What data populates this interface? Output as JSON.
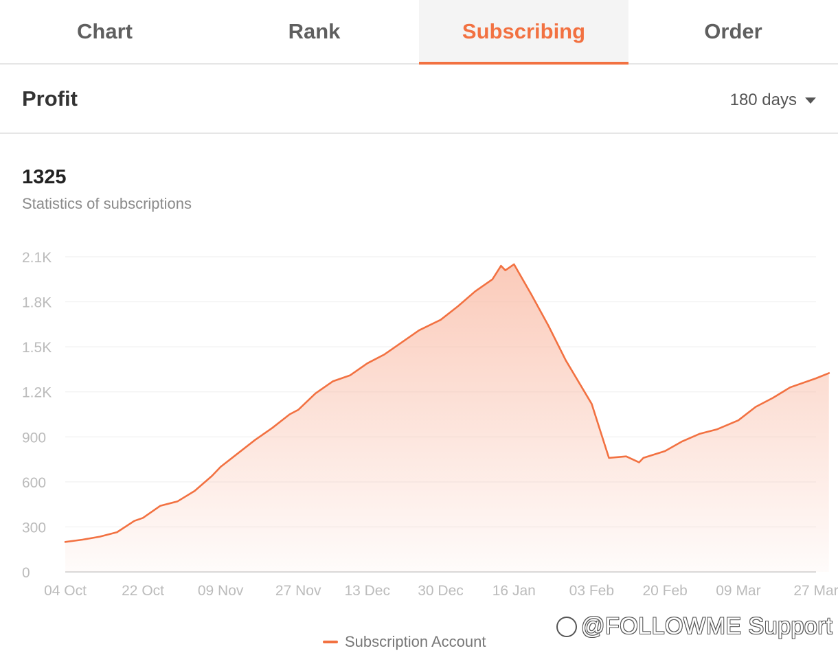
{
  "tabs": [
    {
      "label": "Chart",
      "active": false
    },
    {
      "label": "Rank",
      "active": false
    },
    {
      "label": "Subscribing",
      "active": true
    },
    {
      "label": "Order",
      "active": false
    }
  ],
  "header": {
    "title": "Profit",
    "range_label": "180 days"
  },
  "stats": {
    "value": "1325",
    "label": "Statistics of subscriptions"
  },
  "colors": {
    "accent": "#f27141",
    "area_top": "#f9b9a3",
    "grid": "#eeeeee",
    "tick": "#bbbbbb"
  },
  "watermark": "@FOLLOWME Support",
  "chart_data": {
    "type": "area",
    "title": "",
    "xlabel": "",
    "ylabel": "",
    "y_ticks": [
      0,
      300,
      600,
      900,
      1200,
      1500,
      1800,
      2100
    ],
    "y_tick_labels": [
      "0",
      "300",
      "600",
      "900",
      "1.2K",
      "1.5K",
      "1.8K",
      "2.1K"
    ],
    "ylim": [
      0,
      2100
    ],
    "x_tick_labels": [
      "04 Oct",
      "22 Oct",
      "09 Nov",
      "27 Nov",
      "13 Dec",
      "30 Dec",
      "16 Jan",
      "03 Feb",
      "20 Feb",
      "09 Mar",
      "27 Mar"
    ],
    "grid": true,
    "legend_position": "bottom-center",
    "series": [
      {
        "name": "Subscription Account",
        "color": "#f27141",
        "x": [
          "04 Oct",
          "08 Oct",
          "12 Oct",
          "16 Oct",
          "20 Oct",
          "22 Oct",
          "26 Oct",
          "30 Oct",
          "03 Nov",
          "07 Nov",
          "09 Nov",
          "13 Nov",
          "17 Nov",
          "21 Nov",
          "25 Nov",
          "27 Nov",
          "01 Dec",
          "05 Dec",
          "09 Dec",
          "13 Dec",
          "17 Dec",
          "21 Dec",
          "25 Dec",
          "30 Dec",
          "03 Jan",
          "07 Jan",
          "11 Jan",
          "13 Jan",
          "14 Jan",
          "16 Jan",
          "20 Jan",
          "24 Jan",
          "28 Jan",
          "03 Feb",
          "07 Feb",
          "11 Feb",
          "14 Feb",
          "15 Feb",
          "20 Feb",
          "24 Feb",
          "28 Feb",
          "04 Mar",
          "09 Mar",
          "13 Mar",
          "17 Mar",
          "21 Mar",
          "27 Mar",
          "30 Mar"
        ],
        "values": [
          200,
          215,
          235,
          265,
          340,
          360,
          440,
          470,
          540,
          640,
          700,
          790,
          880,
          960,
          1050,
          1080,
          1190,
          1270,
          1310,
          1390,
          1450,
          1530,
          1610,
          1680,
          1770,
          1870,
          1950,
          2040,
          2010,
          2050,
          1850,
          1640,
          1410,
          1120,
          760,
          770,
          730,
          760,
          805,
          870,
          920,
          950,
          1010,
          1100,
          1160,
          1230,
          1290,
          1325
        ]
      }
    ]
  }
}
